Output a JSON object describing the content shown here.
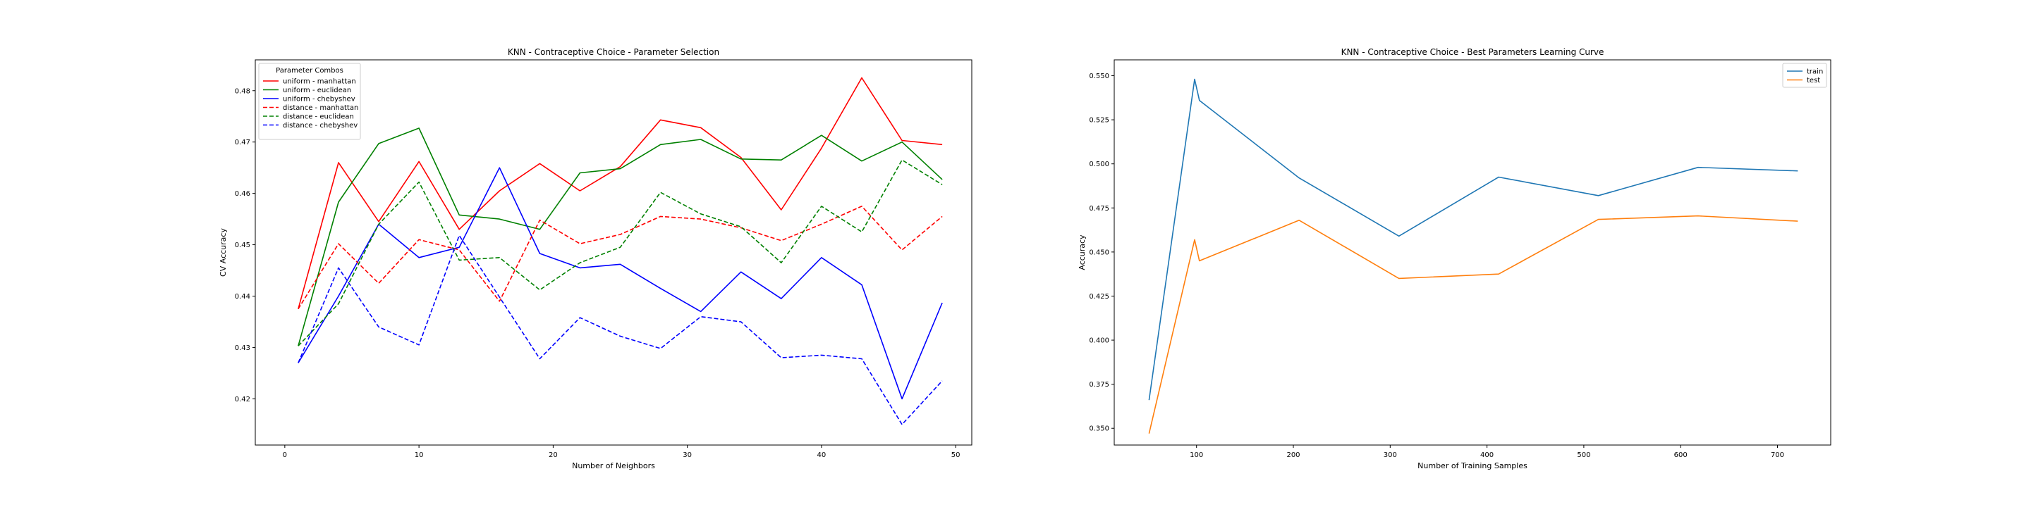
{
  "chart_data": [
    {
      "type": "line",
      "title": "KNN - Contraceptive Choice - Parameter Selection",
      "xlabel": "Number of Neighbors",
      "ylabel": "CV Accuracy",
      "xlim": [
        -2.2,
        51.2
      ],
      "ylim": [
        0.411,
        0.486
      ],
      "xticks": [
        0,
        10,
        20,
        30,
        40,
        50
      ],
      "yticks": [
        0.42,
        0.43,
        0.44,
        0.45,
        0.46,
        0.47,
        0.48
      ],
      "ytick_decimals": 2,
      "legend_title": "Parameter Combos",
      "legend_position": "upper left",
      "x": [
        1,
        4,
        7,
        10,
        13,
        16,
        19,
        22,
        25,
        28,
        31,
        34,
        37,
        40,
        43,
        46,
        49
      ],
      "series": [
        {
          "name": "uniform - manhattan",
          "color": "#ff0000",
          "dash": "solid",
          "values": [
            0.4375,
            0.466,
            0.4545,
            0.4662,
            0.453,
            0.4605,
            0.4658,
            0.4605,
            0.4652,
            0.4743,
            0.4728,
            0.467,
            0.4568,
            0.4688,
            0.4825,
            0.4703,
            0.4695
          ]
        },
        {
          "name": "uniform - euclidean",
          "color": "#008000",
          "dash": "solid",
          "values": [
            0.4303,
            0.4583,
            0.4697,
            0.4727,
            0.4558,
            0.455,
            0.453,
            0.464,
            0.4648,
            0.4695,
            0.4705,
            0.4667,
            0.4665,
            0.4713,
            0.4663,
            0.47,
            0.4627
          ]
        },
        {
          "name": "uniform - chebyshev",
          "color": "#0000ff",
          "dash": "solid",
          "values": [
            0.427,
            0.44,
            0.454,
            0.4475,
            0.4495,
            0.465,
            0.4483,
            0.4455,
            0.4462,
            0.4415,
            0.437,
            0.4447,
            0.4395,
            0.4475,
            0.4422,
            0.42,
            0.4387
          ]
        },
        {
          "name": "distance - manhattan",
          "color": "#ff0000",
          "dash": "dashed",
          "values": [
            0.4375,
            0.4502,
            0.4425,
            0.451,
            0.449,
            0.439,
            0.4548,
            0.4502,
            0.452,
            0.4555,
            0.455,
            0.4533,
            0.4508,
            0.454,
            0.4575,
            0.449,
            0.4555
          ]
        },
        {
          "name": "distance - euclidean",
          "color": "#008000",
          "dash": "dashed",
          "values": [
            0.4303,
            0.4385,
            0.454,
            0.4622,
            0.447,
            0.4475,
            0.4412,
            0.4465,
            0.4495,
            0.4602,
            0.456,
            0.4535,
            0.4465,
            0.4575,
            0.4525,
            0.4665,
            0.4617
          ]
        },
        {
          "name": "distance - chebyshev",
          "color": "#0000ff",
          "dash": "dashed",
          "values": [
            0.427,
            0.4455,
            0.434,
            0.4305,
            0.4518,
            0.4398,
            0.4278,
            0.4358,
            0.4322,
            0.4298,
            0.436,
            0.435,
            0.428,
            0.4285,
            0.4278,
            0.415,
            0.4235
          ]
        }
      ]
    },
    {
      "type": "line",
      "title": "KNN - Contraceptive Choice -  Best Parameters Learning Curve",
      "xlabel": "Number of Training Samples",
      "ylabel": "Accuracy",
      "xlim": [
        15,
        755
      ],
      "ylim": [
        0.3405,
        0.559
      ],
      "xticks": [
        100,
        200,
        300,
        400,
        500,
        600,
        700
      ],
      "yticks": [
        0.35,
        0.375,
        0.4,
        0.425,
        0.45,
        0.475,
        0.5,
        0.525,
        0.55
      ],
      "ytick_decimals": 3,
      "legend_title": "",
      "legend_position": "upper right",
      "x": [
        51,
        98,
        103,
        206,
        309,
        412,
        515,
        618,
        721
      ],
      "series": [
        {
          "name": "train",
          "color": "#1f77b4",
          "dash": "solid",
          "values": [
            0.366,
            0.548,
            0.536,
            0.492,
            0.459,
            0.4925,
            0.482,
            0.498,
            0.496
          ]
        },
        {
          "name": "test",
          "color": "#ff7f0e",
          "dash": "solid",
          "values": [
            0.347,
            0.457,
            0.445,
            0.468,
            0.435,
            0.4375,
            0.4685,
            0.4705,
            0.4675
          ]
        }
      ]
    }
  ]
}
